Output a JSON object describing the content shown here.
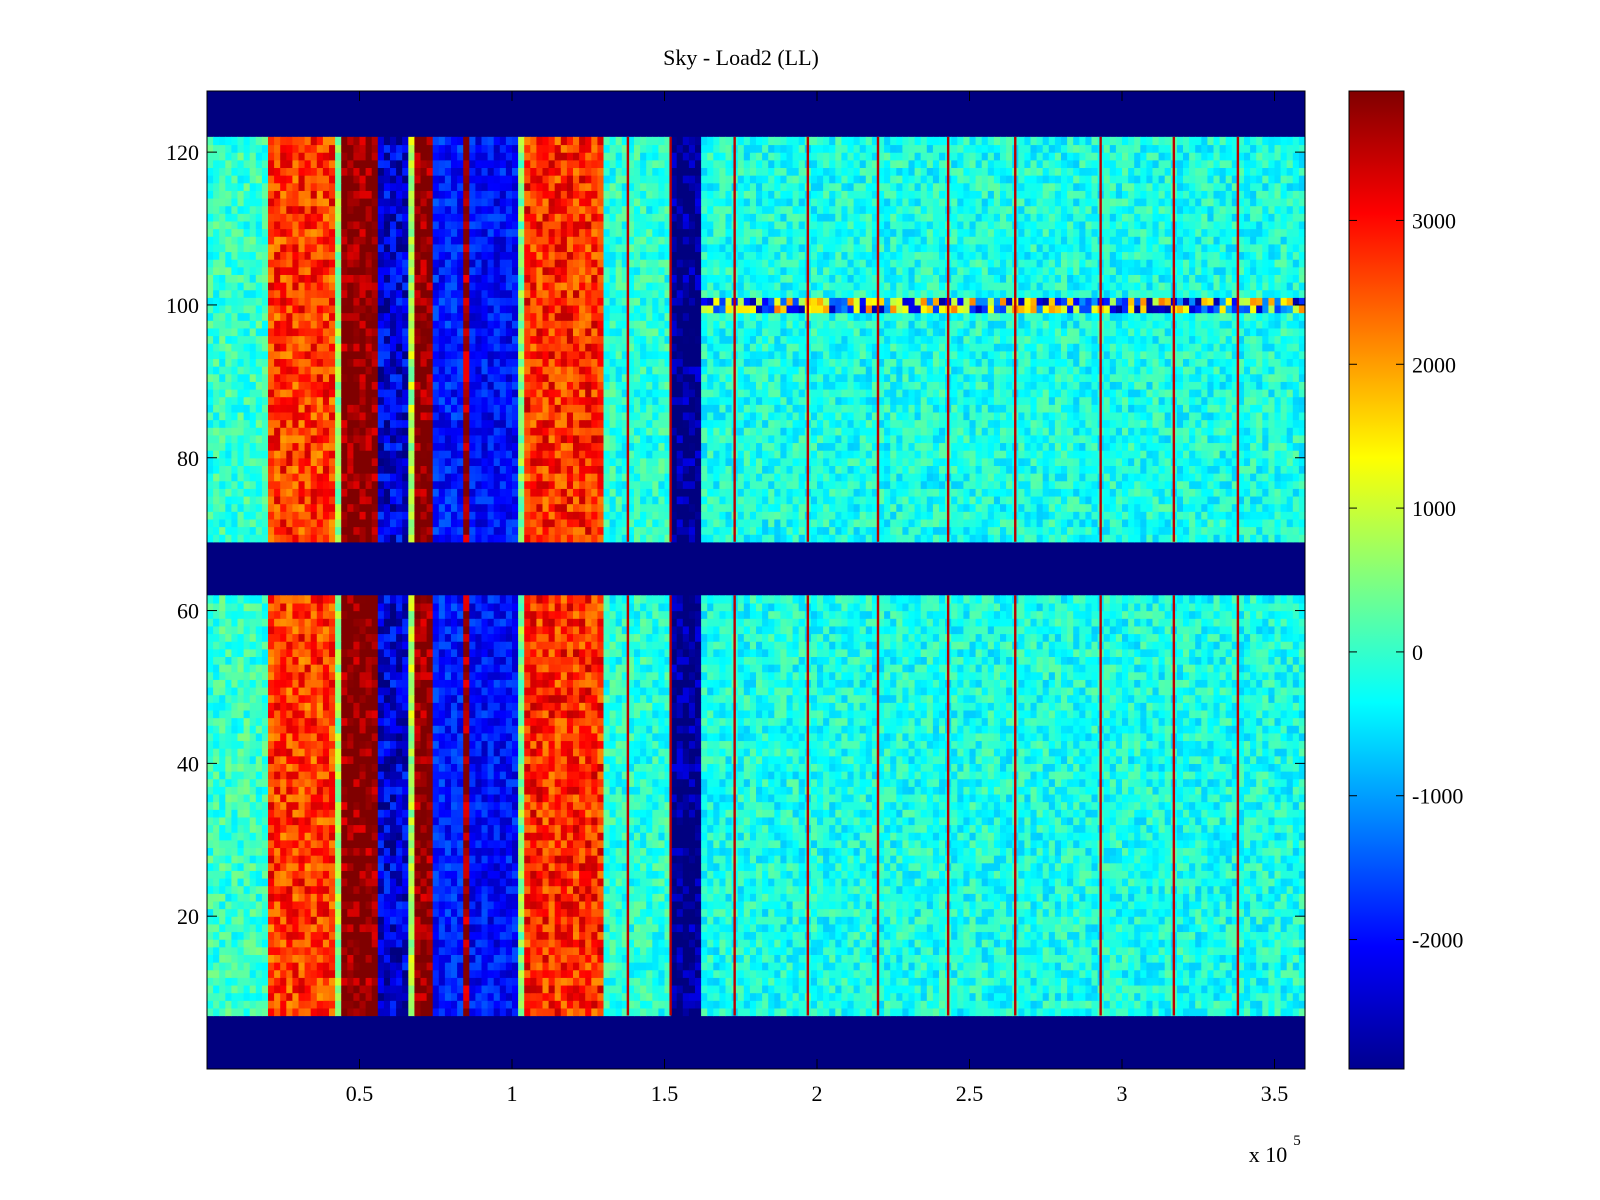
{
  "chart_data": {
    "type": "heatmap",
    "title": "Sky - Load2 (LL)",
    "xlabel": "",
    "ylabel": "",
    "x_multiplier_label": "x 10",
    "x_multiplier_exponent": "5",
    "xlim": [
      0,
      3.6
    ],
    "ylim": [
      0,
      128
    ],
    "x_ticks": [
      0.5,
      1,
      1.5,
      2,
      2.5,
      3,
      3.5
    ],
    "x_tick_labels": [
      "0.5",
      "1",
      "1.5",
      "2",
      "2.5",
      "3",
      "3.5"
    ],
    "y_ticks": [
      20,
      40,
      60,
      80,
      100,
      120
    ],
    "y_tick_labels": [
      "20",
      "40",
      "60",
      "80",
      "100",
      "120"
    ],
    "colorbar": {
      "colormap": "jet",
      "clim": [
        -2900,
        3900
      ],
      "ticks": [
        -2000,
        -1000,
        0,
        1000,
        2000,
        3000
      ],
      "tick_labels": [
        "-2000",
        "-1000",
        "0",
        "1000",
        "2000",
        "3000"
      ]
    },
    "blank_row_bands": [
      [
        0,
        7
      ],
      [
        62,
        69
      ],
      [
        122,
        128
      ]
    ],
    "column_bands": [
      {
        "x_range": [
          0.0,
          0.2
        ],
        "value": 0
      },
      {
        "x_range": [
          0.2,
          0.43
        ],
        "value": 2700
      },
      {
        "x_range": [
          0.43,
          0.45
        ],
        "value": 600
      },
      {
        "x_range": [
          0.45,
          0.57
        ],
        "value": 3900
      },
      {
        "x_range": [
          0.57,
          0.67
        ],
        "value": -2300
      },
      {
        "x_range": [
          0.67,
          0.69
        ],
        "value": 800
      },
      {
        "x_range": [
          0.69,
          0.74
        ],
        "value": 3900
      },
      {
        "x_range": [
          0.74,
          0.84
        ],
        "value": -1900
      },
      {
        "x_range": [
          0.84,
          0.87
        ],
        "value": 3800
      },
      {
        "x_range": [
          0.87,
          1.02
        ],
        "value": -2000
      },
      {
        "x_range": [
          1.02,
          1.04
        ],
        "value": 500
      },
      {
        "x_range": [
          1.04,
          1.31
        ],
        "value": 2800
      },
      {
        "x_range": [
          1.31,
          1.52
        ],
        "value": -100
      },
      {
        "x_range": [
          1.52,
          1.63
        ],
        "value": -2900
      },
      {
        "x_range": [
          1.63,
          3.6
        ],
        "value": -200
      }
    ],
    "spike_lines_x": [
      1.38,
      1.52,
      1.73,
      1.97,
      2.2,
      2.43,
      2.65,
      2.93,
      3.17,
      3.38
    ],
    "spike_value": 3500,
    "highlight_row": {
      "y": 100,
      "value": 1500
    }
  }
}
